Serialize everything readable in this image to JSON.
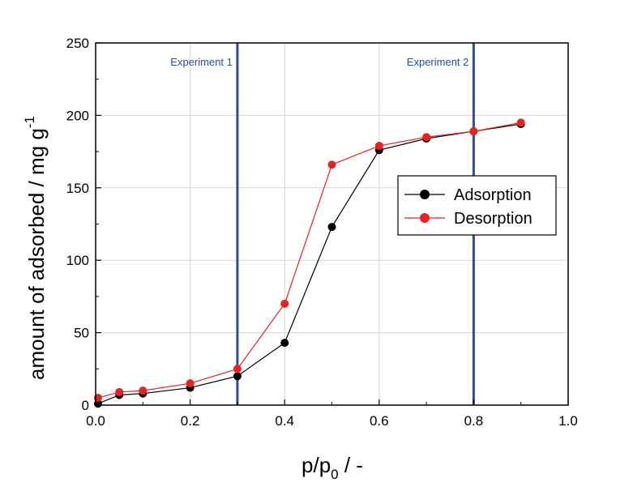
{
  "chart_data": {
    "type": "line",
    "xlabel_main": "p/p",
    "xlabel_sub": "0",
    "xlabel_tail": " / -",
    "ylabel_main": "amount of adsorbed / mg g",
    "ylabel_sup": "-1",
    "xlim": [
      0.0,
      1.0
    ],
    "ylim": [
      0,
      250
    ],
    "xticks": [
      0.0,
      0.2,
      0.4,
      0.6,
      0.8,
      1.0
    ],
    "xtick_labels": [
      "0.0",
      "0.2",
      "0.4",
      "0.6",
      "0.8",
      "1.0"
    ],
    "yticks": [
      0,
      50,
      100,
      150,
      200,
      250
    ],
    "ytick_labels": [
      "0",
      "50",
      "100",
      "150",
      "200",
      "250"
    ],
    "grid": true,
    "legend_position": "right",
    "series": [
      {
        "name": "Adsorption",
        "color": "#000000",
        "x": [
          0.005,
          0.05,
          0.1,
          0.2,
          0.3,
          0.4,
          0.5,
          0.6,
          0.7,
          0.8,
          0.9
        ],
        "y": [
          1,
          7,
          8,
          12,
          20,
          43,
          123,
          176,
          184,
          189,
          194
        ]
      },
      {
        "name": "Desorption",
        "color": "#e8231f",
        "x": [
          0.005,
          0.05,
          0.1,
          0.2,
          0.3,
          0.4,
          0.5,
          0.6,
          0.7,
          0.8,
          0.9
        ],
        "y": [
          5,
          9,
          10,
          15,
          25,
          70,
          166,
          179,
          185,
          189,
          195
        ]
      }
    ],
    "vlines": [
      {
        "x": 0.3,
        "label": "Experiment 1",
        "color": "#2c4aa8"
      },
      {
        "x": 0.8,
        "label": "Experiment 2",
        "color": "#2c4aa8"
      }
    ]
  }
}
